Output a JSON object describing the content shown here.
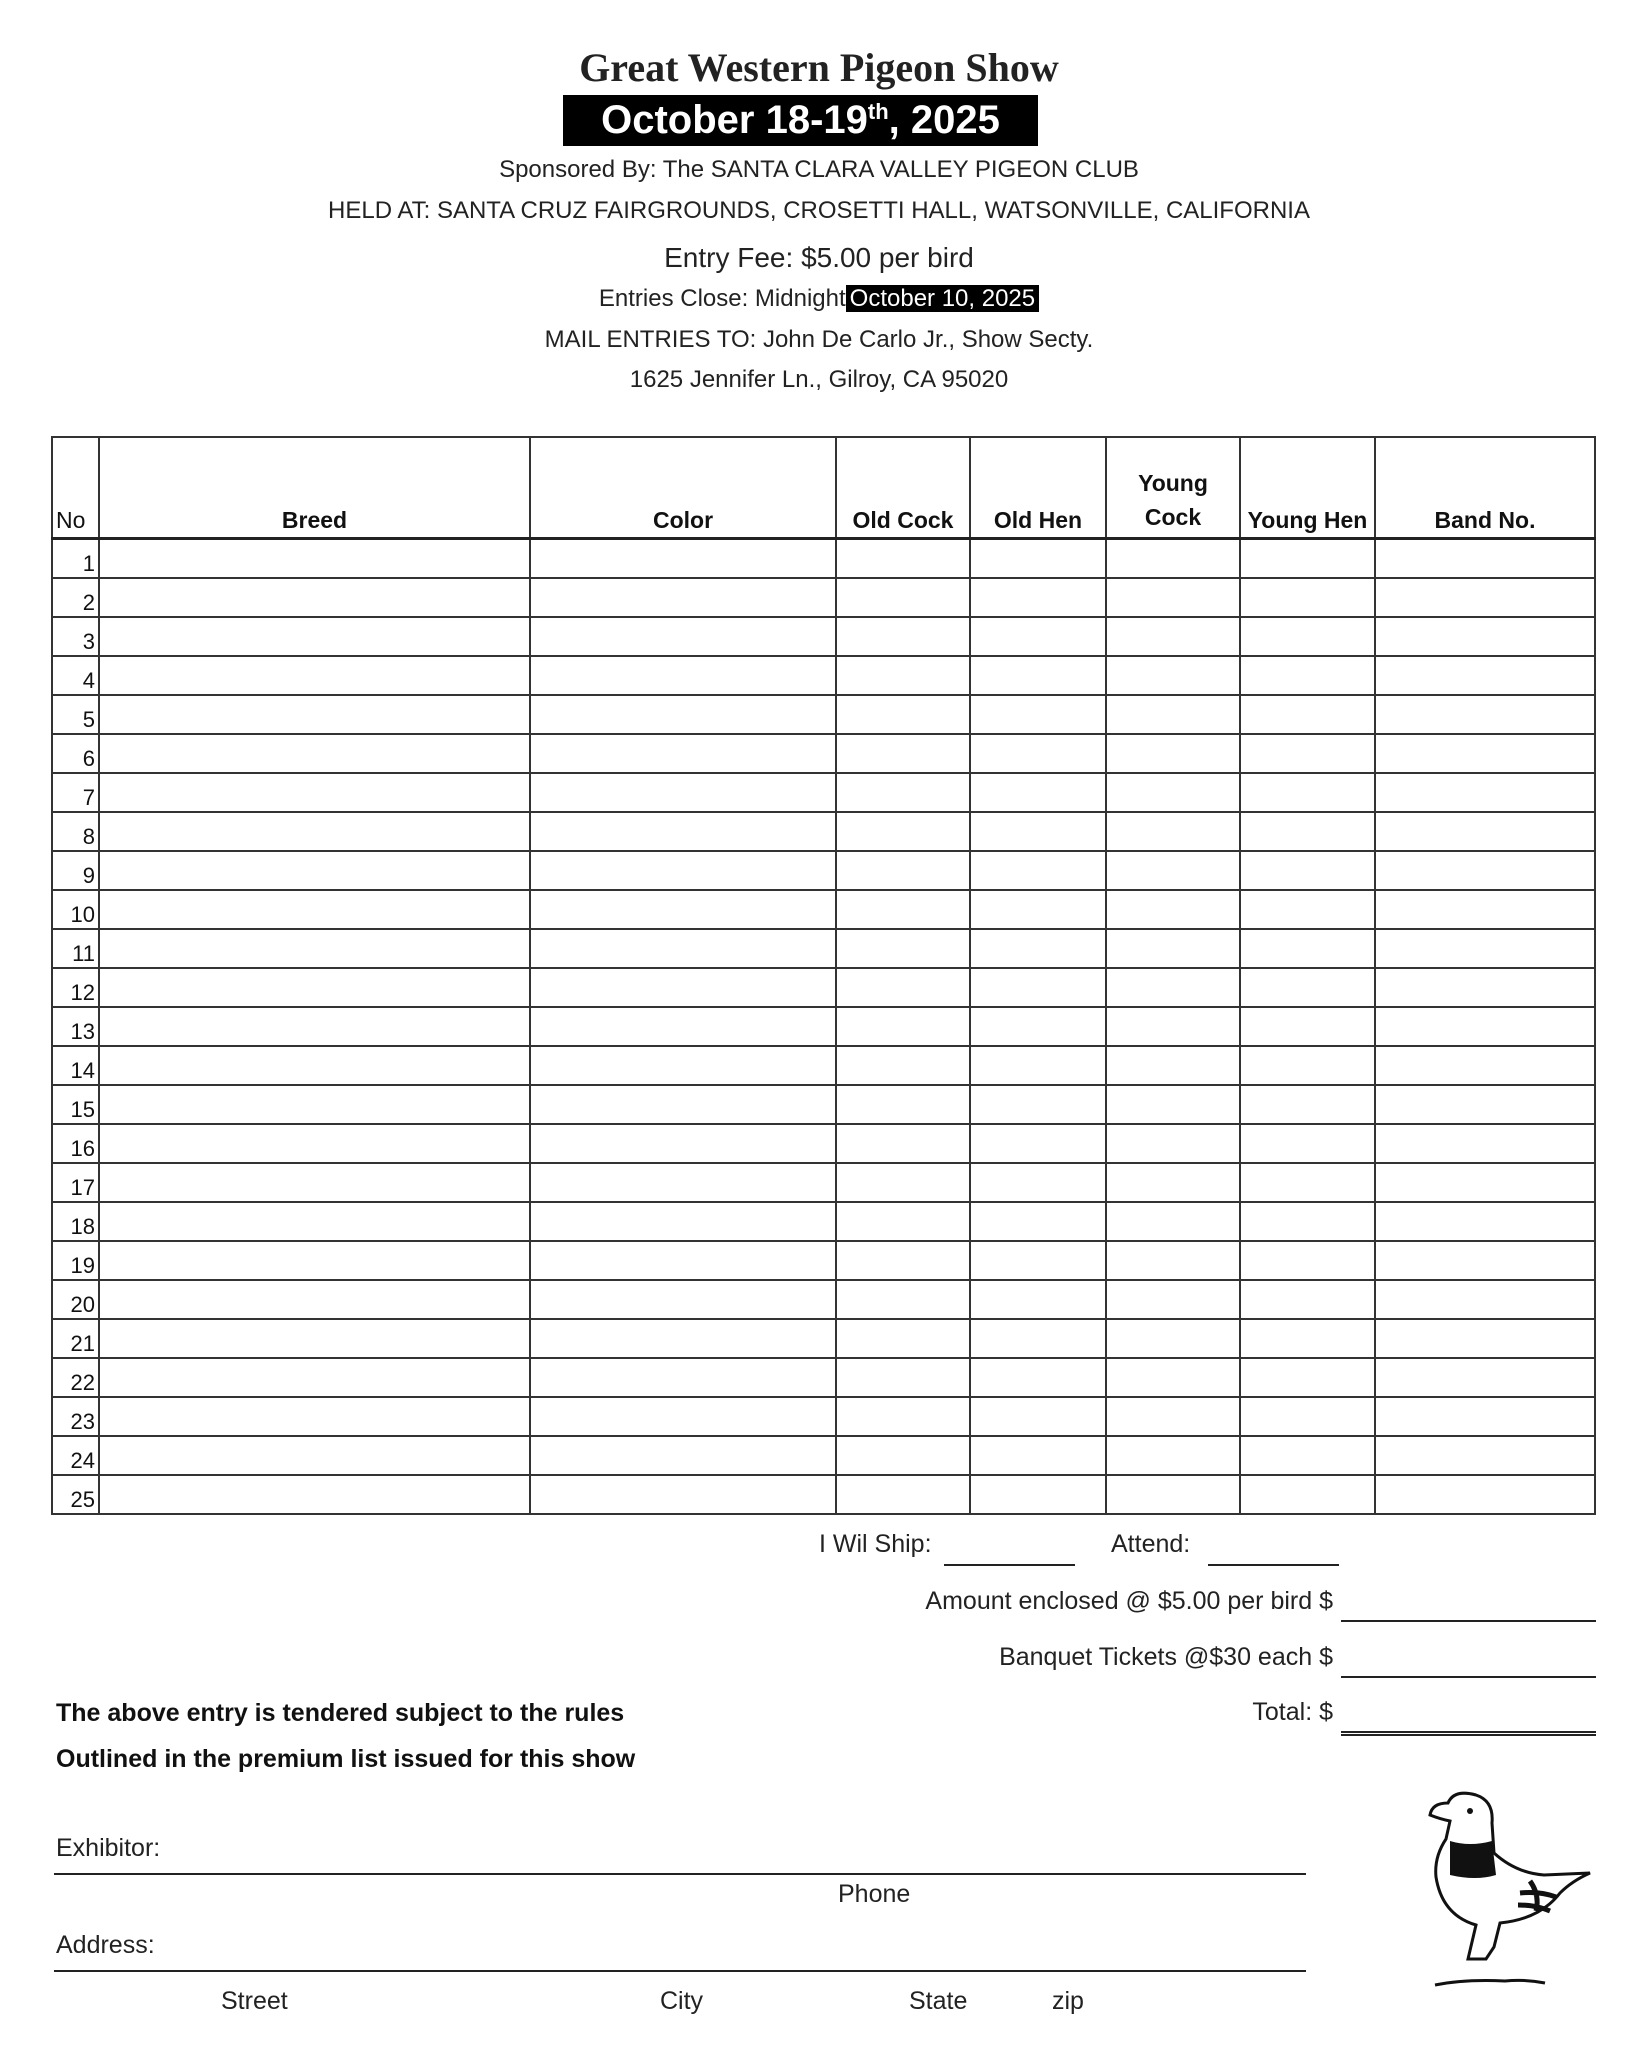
{
  "header": {
    "title": "Great Western Pigeon Show",
    "date_main": "October 18-19",
    "date_sup": "th",
    "date_year": ", 2025",
    "sponsor": "Sponsored By: The SANTA CLARA VALLEY PIGEON CLUB",
    "location": "HELD AT: SANTA CRUZ FAIRGROUNDS, CROSETTI HALL, WATSONVILLE, CALIFORNIA",
    "entry_fee": "Entry Fee: $5.00 per bird",
    "close_label": "Entries Close: Midnight",
    "close_date": "October  10, 2025",
    "mail_to": "MAIL ENTRIES TO: John De Carlo Jr., Show Secty.",
    "mail_address": "1625 Jennifer Ln., Gilroy, CA 95020"
  },
  "table": {
    "columns": [
      "No",
      "Breed",
      "Color",
      "Old Cock",
      "Old Hen",
      "Young Cock",
      "Young Hen",
      "Band No."
    ],
    "rows": [
      "1",
      "2",
      "3",
      "4",
      "5",
      "6",
      "7",
      "8",
      "9",
      "10",
      "11",
      "12",
      "13",
      "14",
      "15",
      "16",
      "17",
      "18",
      "19",
      "20",
      "21",
      "22",
      "23",
      "24",
      "25"
    ]
  },
  "footer": {
    "ship_label": "I Wil Ship:",
    "attend_label": "Attend:",
    "amount_label": "Amount enclosed @ $5.00 per bird $",
    "banquet_label": "Banquet Tickets @$30 each $",
    "total_label": "Total: $",
    "rules_line1": "The above entry is tendered subject to the rules",
    "rules_line2": "Outlined in the premium list issued for this show",
    "exhibitor_label": "Exhibitor:",
    "phone_label": "Phone",
    "address_label": "Address:",
    "street_label": "Street",
    "city_label": "City",
    "state_label": "State",
    "zip_label": "zip"
  },
  "illustration": "pigeon-drawing"
}
